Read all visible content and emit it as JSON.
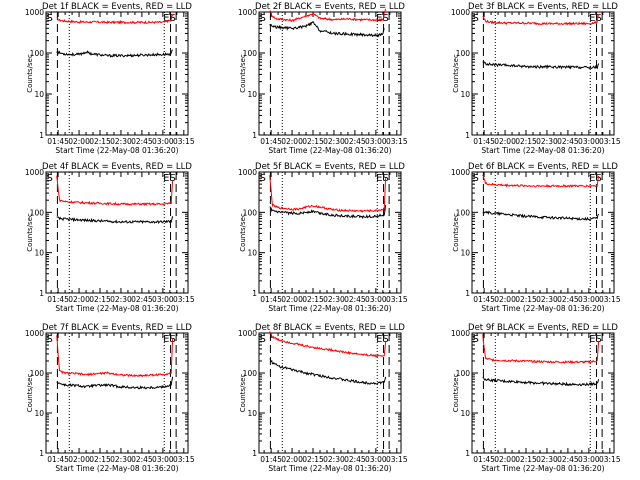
{
  "shared": {
    "xticks": [
      "01:45",
      "02:00",
      "02:15",
      "02:30",
      "02:45",
      "03:00",
      "03:15"
    ],
    "x_tick_minutes": [
      105,
      120,
      135,
      150,
      165,
      180,
      195
    ],
    "x_range_minutes": [
      96.33,
      198
    ],
    "yticks": [
      "1",
      "10",
      "100",
      "1000"
    ],
    "ylim": [
      1,
      1000
    ],
    "yscale": "log",
    "ylabel": "Counts/sec",
    "xlabel": "Start Time (22-May-08 01:36:20)",
    "marker_S": "S",
    "marker_E": "E",
    "colors": {
      "events": "#000000",
      "lld": "#ff0000"
    }
  },
  "chart_data": [
    {
      "type": "line",
      "title": "Det 1f BLACK = Events, RED = LLD",
      "dashed_x": [
        104.5,
        185.5,
        189.5
      ],
      "dotted_x": [
        113,
        181
      ],
      "markers": [
        {
          "text": "S",
          "x": 99
        },
        {
          "text": "E",
          "x": 182.5
        },
        {
          "text": "S",
          "x": 187
        }
      ],
      "lld": {
        "x": [
          104,
          106,
          110,
          120,
          130,
          140,
          150,
          160,
          170,
          180,
          186,
          187
        ],
        "y": [
          700,
          630,
          600,
          570,
          570,
          560,
          560,
          560,
          560,
          560,
          620,
          900
        ]
      },
      "events": {
        "x": [
          104,
          106,
          110,
          115,
          120,
          125,
          130,
          140,
          150,
          160,
          170,
          180,
          186,
          187
        ],
        "y": [
          110,
          100,
          95,
          92,
          92,
          105,
          94,
          86,
          86,
          88,
          90,
          92,
          95,
          120
        ]
      }
    },
    {
      "type": "line",
      "title": "Det 2f BLACK = Events, RED = LLD",
      "dashed_x": [
        104.5,
        185.5,
        189.5
      ],
      "dotted_x": [
        113,
        181
      ],
      "markers": [
        {
          "text": "S",
          "x": 99
        },
        {
          "text": "E",
          "x": 182.5
        },
        {
          "text": "S",
          "x": 187
        }
      ],
      "lld": {
        "x": [
          104,
          106,
          108,
          110,
          115,
          120,
          125,
          130,
          135,
          140,
          150,
          160,
          170,
          180,
          185,
          186,
          187
        ],
        "y": [
          1100,
          800,
          700,
          680,
          650,
          620,
          700,
          800,
          900,
          700,
          650,
          680,
          650,
          640,
          650,
          900,
          1200
        ]
      },
      "events": {
        "x": [
          104,
          106,
          110,
          115,
          120,
          125,
          130,
          135,
          140,
          150,
          160,
          170,
          180,
          185,
          186
        ],
        "y": [
          500,
          450,
          420,
          410,
          400,
          420,
          450,
          550,
          350,
          300,
          290,
          280,
          270,
          280,
          400
        ]
      }
    },
    {
      "type": "line",
      "title": "Det 3f BLACK = Events, RED = LLD",
      "dashed_x": [
        104.5,
        185.5,
        189.5
      ],
      "dotted_x": [
        113,
        181
      ],
      "markers": [
        {
          "text": "S",
          "x": 99
        },
        {
          "text": "E",
          "x": 182.5
        },
        {
          "text": "S",
          "x": 187
        }
      ],
      "lld": {
        "x": [
          104,
          106,
          110,
          120,
          130,
          140,
          150,
          160,
          170,
          180,
          186,
          187
        ],
        "y": [
          800,
          600,
          560,
          540,
          540,
          530,
          520,
          520,
          520,
          520,
          560,
          900
        ]
      },
      "events": {
        "x": [
          104,
          106,
          110,
          120,
          130,
          140,
          150,
          160,
          170,
          180,
          186,
          187
        ],
        "y": [
          60,
          55,
          52,
          50,
          48,
          46,
          46,
          45,
          45,
          44,
          45,
          55
        ]
      }
    },
    {
      "type": "line",
      "title": "Det 4f BLACK = Events, RED = LLD",
      "dashed_x": [
        104.5,
        185.5,
        189.5
      ],
      "dotted_x": [
        113,
        181
      ],
      "markers": [
        {
          "text": "S",
          "x": 99
        },
        {
          "text": "E",
          "x": 182.5
        },
        {
          "text": "S",
          "x": 187
        }
      ],
      "lld": {
        "x": [
          104,
          106,
          110,
          120,
          130,
          140,
          150,
          160,
          170,
          180,
          186,
          187
        ],
        "y": [
          800,
          200,
          185,
          175,
          170,
          165,
          160,
          160,
          160,
          160,
          170,
          600
        ]
      },
      "events": {
        "x": [
          104,
          106,
          110,
          120,
          130,
          140,
          150,
          160,
          170,
          180,
          186,
          187
        ],
        "y": [
          75,
          70,
          68,
          65,
          62,
          60,
          58,
          58,
          58,
          58,
          60,
          80
        ]
      }
    },
    {
      "type": "line",
      "title": "Det 5f BLACK = Events, RED = LLD",
      "dashed_x": [
        104.5,
        185.5,
        189.5
      ],
      "dotted_x": [
        113,
        181
      ],
      "markers": [
        {
          "text": "S",
          "x": 99
        },
        {
          "text": "E",
          "x": 182.5
        },
        {
          "text": "S",
          "x": 187
        }
      ],
      "lld": {
        "x": [
          104,
          106,
          110,
          120,
          125,
          130,
          135,
          140,
          150,
          160,
          170,
          180,
          186,
          187
        ],
        "y": [
          800,
          150,
          130,
          120,
          120,
          135,
          145,
          135,
          115,
          110,
          108,
          110,
          120,
          700
        ]
      },
      "events": {
        "x": [
          104,
          106,
          110,
          120,
          125,
          130,
          135,
          140,
          150,
          160,
          170,
          180,
          186,
          187
        ],
        "y": [
          130,
          110,
          100,
          95,
          95,
          100,
          105,
          95,
          85,
          80,
          78,
          80,
          88,
          150
        ]
      }
    },
    {
      "type": "line",
      "title": "Det 6f BLACK = Events, RED = LLD",
      "dashed_x": [
        104.5,
        185.5,
        189.5
      ],
      "dotted_x": [
        113,
        181
      ],
      "markers": [
        {
          "text": "S",
          "x": 99
        },
        {
          "text": "E",
          "x": 182.5
        },
        {
          "text": "S",
          "x": 187
        }
      ],
      "lld": {
        "x": [
          104,
          106,
          110,
          120,
          130,
          140,
          150,
          160,
          170,
          180,
          186,
          187
        ],
        "y": [
          900,
          520,
          490,
          470,
          460,
          450,
          450,
          450,
          450,
          450,
          460,
          800
        ]
      },
      "events": {
        "x": [
          104,
          106,
          110,
          120,
          130,
          140,
          150,
          160,
          170,
          180,
          186,
          187
        ],
        "y": [
          100,
          105,
          95,
          90,
          82,
          78,
          75,
          72,
          70,
          68,
          72,
          90
        ]
      }
    },
    {
      "type": "line",
      "title": "Det 7f BLACK = Events, RED = LLD",
      "dashed_x": [
        104.5,
        185.5,
        189.5
      ],
      "dotted_x": [
        113,
        181
      ],
      "markers": [
        {
          "text": "S",
          "x": 99
        },
        {
          "text": "E",
          "x": 182.5
        },
        {
          "text": "S",
          "x": 187
        }
      ],
      "lld": {
        "x": [
          104,
          106,
          110,
          120,
          125,
          130,
          140,
          150,
          160,
          170,
          180,
          186,
          187
        ],
        "y": [
          900,
          110,
          100,
          95,
          90,
          95,
          100,
          90,
          85,
          88,
          92,
          100,
          700
        ]
      },
      "events": {
        "x": [
          104,
          106,
          110,
          120,
          125,
          130,
          140,
          150,
          160,
          170,
          180,
          186,
          187
        ],
        "y": [
          60,
          55,
          50,
          48,
          45,
          48,
          50,
          45,
          43,
          43,
          45,
          50,
          80
        ]
      }
    },
    {
      "type": "line",
      "title": "Det 8f BLACK = Events, RED = LLD",
      "dashed_x": [
        104.5,
        185.5,
        189.5
      ],
      "dotted_x": [
        113,
        181
      ],
      "markers": [
        {
          "text": "S",
          "x": 99
        },
        {
          "text": "E",
          "x": 182.5
        },
        {
          "text": "S",
          "x": 187
        }
      ],
      "lld": {
        "x": [
          104,
          106,
          110,
          120,
          130,
          140,
          150,
          160,
          170,
          180,
          186,
          187
        ],
        "y": [
          1100,
          800,
          680,
          560,
          470,
          410,
          370,
          320,
          290,
          270,
          270,
          600
        ]
      },
      "events": {
        "x": [
          104,
          106,
          110,
          120,
          130,
          140,
          150,
          160,
          170,
          180,
          186,
          187
        ],
        "y": [
          230,
          180,
          150,
          120,
          100,
          85,
          75,
          65,
          58,
          55,
          58,
          80
        ]
      }
    },
    {
      "type": "line",
      "title": "Det 9f BLACK = Events, RED = LLD",
      "dashed_x": [
        104.5,
        185.5,
        189.5
      ],
      "dotted_x": [
        113,
        181
      ],
      "markers": [
        {
          "text": "S",
          "x": 99
        },
        {
          "text": "E",
          "x": 182.5
        },
        {
          "text": "S",
          "x": 187
        }
      ],
      "lld": {
        "x": [
          104,
          106,
          110,
          120,
          130,
          140,
          150,
          160,
          170,
          180,
          186,
          187
        ],
        "y": [
          900,
          230,
          215,
          205,
          200,
          195,
          190,
          188,
          188,
          188,
          200,
          600
        ]
      },
      "events": {
        "x": [
          104,
          106,
          110,
          120,
          130,
          140,
          150,
          160,
          170,
          180,
          186,
          187
        ],
        "y": [
          75,
          70,
          66,
          62,
          60,
          57,
          55,
          53,
          52,
          52,
          55,
          70
        ]
      }
    }
  ]
}
